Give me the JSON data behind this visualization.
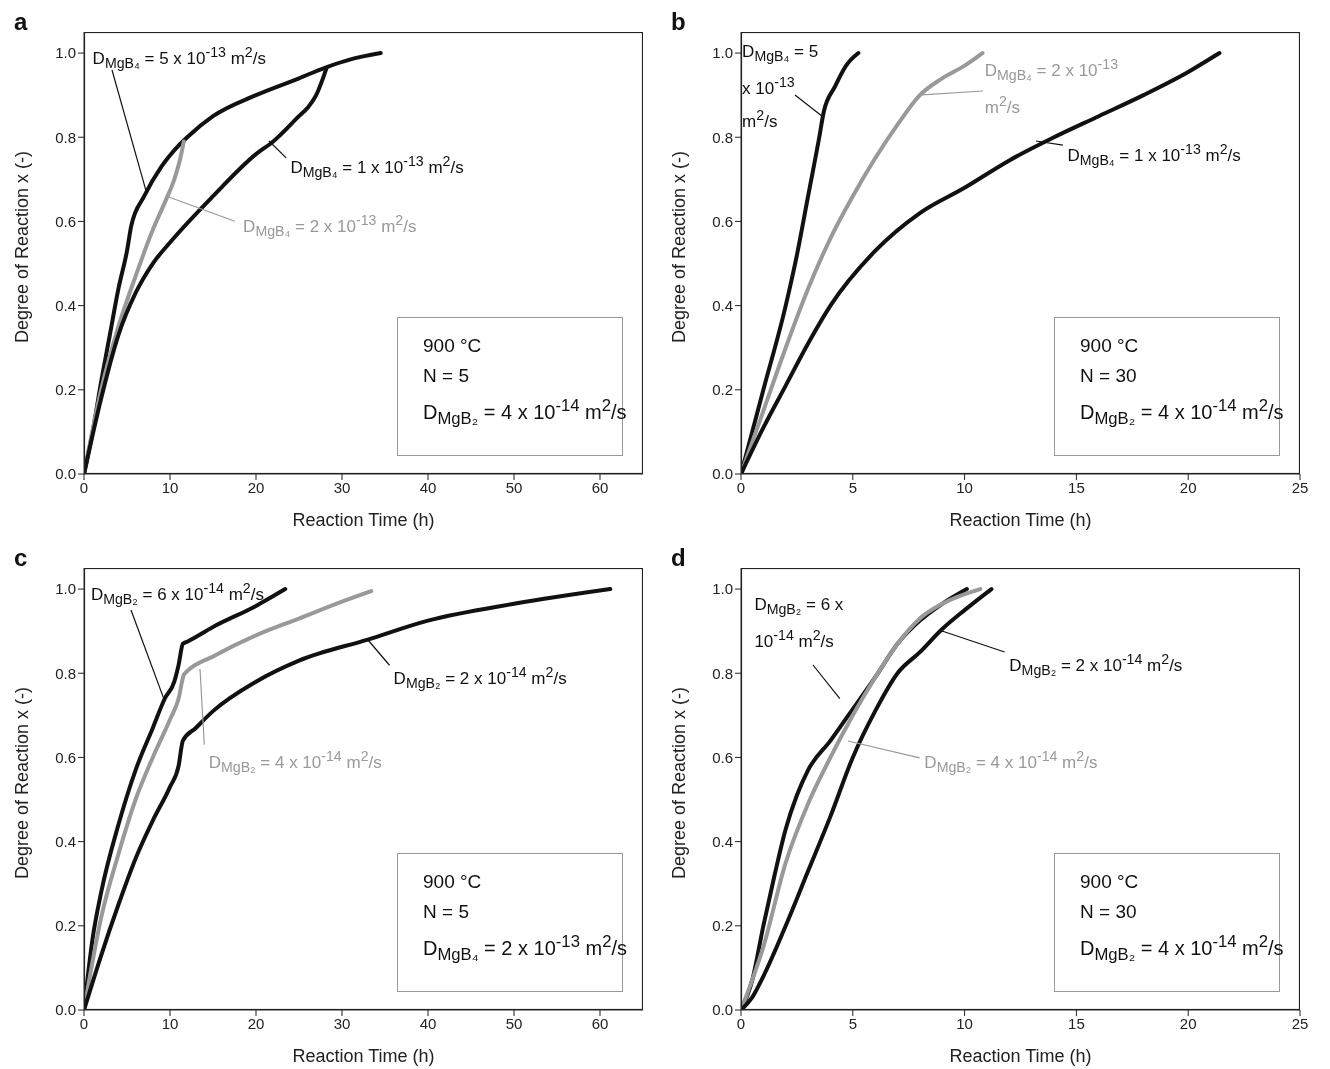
{
  "chart_data": [
    {
      "type": "line",
      "title": "a",
      "xlabel": "Reaction Time (h)",
      "ylabel": "Degree of Reaction x (-)",
      "xlim": [
        0,
        65
      ],
      "xticks": [
        0,
        10,
        20,
        30,
        40,
        50,
        60
      ],
      "ylim": [
        0,
        1.05
      ],
      "yticks": [
        {
          "value": 0,
          "label": "0.0"
        },
        {
          "value": 0.2,
          "label": "0.2"
        },
        {
          "value": 0.4,
          "label": "0.4"
        },
        {
          "value": 0.6,
          "label": "0.6"
        },
        {
          "value": 0.8,
          "label": "0.8"
        },
        {
          "value": 1,
          "label": "1.0"
        }
      ],
      "series": [
        {
          "name": "D$_{MgB₄}$ = 5 x 10$^{-13}$ m$^{2}$/s",
          "color": "#111111",
          "x": [
            0,
            1,
            2,
            3,
            4,
            5,
            5.5,
            7,
            9,
            11,
            12,
            15,
            20,
            25,
            28,
            31,
            34.5
          ],
          "values": [
            0,
            0.1,
            0.22,
            0.33,
            0.44,
            0.53,
            0.59,
            0.66,
            0.73,
            0.78,
            0.8,
            0.85,
            0.9,
            0.94,
            0.965,
            0.985,
            1.0
          ]
        },
        {
          "name": "D$_{MgB₄}$ = 2 x 10$^{-13}$ m$^{2}$/s",
          "color": "#999999",
          "x": [
            0,
            2,
            4,
            6,
            8,
            9.5,
            10.5,
            11.2,
            11.6
          ],
          "values": [
            0,
            0.2,
            0.35,
            0.47,
            0.58,
            0.65,
            0.7,
            0.75,
            0.79
          ]
        },
        {
          "name": "D$_{MgB₄}$ = 1 x 10$^{-13}$ m$^{2}$/s",
          "color": "#111111",
          "x": [
            0,
            2,
            4,
            6,
            8,
            10,
            15,
            20,
            22,
            25,
            26,
            27,
            28.2
          ],
          "values": [
            0,
            0.18,
            0.33,
            0.43,
            0.5,
            0.55,
            0.66,
            0.76,
            0.79,
            0.85,
            0.87,
            0.9,
            0.964
          ]
        }
      ],
      "annotations": [
        "900 °C",
        "N = 5",
        "D$_{MgB₂}$ = 4 x 10$^{-14}$ m$^{2}$/s"
      ]
    },
    {
      "type": "line",
      "title": "b",
      "xlabel": "Reaction Time (h)",
      "ylabel": "Degree of Reaction x (-)",
      "xlim": [
        0,
        25
      ],
      "xticks": [
        0,
        5,
        10,
        15,
        20,
        25
      ],
      "ylim": [
        0,
        1.05
      ],
      "yticks": [
        {
          "value": 0,
          "label": "0.0"
        },
        {
          "value": 0.2,
          "label": "0.2"
        },
        {
          "value": 0.4,
          "label": "0.4"
        },
        {
          "value": 0.6,
          "label": "0.6"
        },
        {
          "value": 0.8,
          "label": "0.8"
        },
        {
          "value": 1,
          "label": "1.0"
        }
      ],
      "series": [
        {
          "name": "D$_{MgB₄}$ = 5 x 10$^{-13}$ m$^{2}$/s",
          "color": "#111111",
          "x": [
            0,
            1,
            2,
            2.5,
            3,
            3.5,
            3.7,
            4.2,
            4.7,
            5.25
          ],
          "values": [
            0,
            0.2,
            0.4,
            0.52,
            0.66,
            0.8,
            0.86,
            0.92,
            0.97,
            1.0
          ]
        },
        {
          "name": "D$_{MgB₄}$ = 2 x 10$^{-13}$ m$^{2}$/s",
          "color": "#999999",
          "x": [
            0,
            1,
            2,
            3,
            4,
            5,
            6,
            7,
            8,
            9,
            10,
            10.8
          ],
          "values": [
            0,
            0.15,
            0.3,
            0.44,
            0.56,
            0.66,
            0.75,
            0.83,
            0.9,
            0.94,
            0.97,
            1.0
          ]
        },
        {
          "name": "D$_{MgB₄}$ = 1 x 10$^{-13}$ m$^{2}$/s",
          "color": "#111111",
          "x": [
            0,
            1,
            2,
            3,
            4,
            6,
            8,
            10,
            12,
            14,
            16,
            18,
            20,
            21.4
          ],
          "values": [
            0,
            0.11,
            0.21,
            0.31,
            0.4,
            0.53,
            0.62,
            0.68,
            0.745,
            0.8,
            0.85,
            0.9,
            0.955,
            1.0
          ]
        }
      ],
      "annotations": [
        "900 °C",
        "N = 30",
        "D$_{MgB₂}$ = 4 x 10$^{-14}$ m$^{2}$/s"
      ]
    },
    {
      "type": "line",
      "title": "c",
      "xlabel": "Reaction Time (h)",
      "ylabel": "Degree of Reaction x (-)",
      "xlim": [
        0,
        65
      ],
      "xticks": [
        0,
        10,
        20,
        30,
        40,
        50,
        60
      ],
      "ylim": [
        0,
        1.05
      ],
      "yticks": [
        {
          "value": 0,
          "label": "0.0"
        },
        {
          "value": 0.2,
          "label": "0.2"
        },
        {
          "value": 0.4,
          "label": "0.4"
        },
        {
          "value": 0.6,
          "label": "0.6"
        },
        {
          "value": 0.8,
          "label": "0.8"
        },
        {
          "value": 1,
          "label": "1.0"
        }
      ],
      "series": [
        {
          "name": "D$_{MgB₂}$ = 6 x 10$^{-14}$ m$^{2}$/s",
          "color": "#111111",
          "x": [
            0,
            1,
            2,
            4,
            6,
            8,
            9.4,
            10.5,
            11,
            11.5,
            12,
            15,
            20,
            23.4
          ],
          "values": [
            0,
            0.17,
            0.28,
            0.44,
            0.57,
            0.67,
            0.74,
            0.78,
            0.82,
            0.87,
            0.875,
            0.91,
            0.96,
            1.0
          ]
        },
        {
          "name": "D$_{MgB₂}$ = 4 x 10$^{-14}$ m$^{2}$/s",
          "color": "#999999",
          "x": [
            0,
            2,
            4,
            6,
            8,
            10,
            11,
            11.6,
            12,
            15,
            20,
            25,
            30,
            33.4
          ],
          "values": [
            0,
            0.22,
            0.37,
            0.5,
            0.6,
            0.69,
            0.74,
            0.796,
            0.805,
            0.84,
            0.89,
            0.93,
            0.97,
            0.995
          ]
        },
        {
          "name": "D$_{MgB₂}$ = 2 x 10$^{-14}$ m$^{2}$/s",
          "color": "#111111",
          "x": [
            0,
            2,
            4,
            6,
            8,
            10,
            11,
            11.5,
            13,
            15,
            20,
            25,
            33,
            40,
            50,
            61.2
          ],
          "values": [
            0,
            0.13,
            0.25,
            0.36,
            0.45,
            0.53,
            0.58,
            0.64,
            0.67,
            0.71,
            0.78,
            0.83,
            0.88,
            0.925,
            0.965,
            1.0
          ]
        }
      ],
      "annotations": [
        "900 °C",
        "N = 5",
        "D$_{MgB₄}$ = 2 x 10$^{-13}$ m$^{2}$/s"
      ]
    },
    {
      "type": "line",
      "title": "d",
      "xlabel": "Reaction Time (h)",
      "ylabel": "Degree of Reaction x (-)",
      "xlim": [
        0,
        25
      ],
      "xticks": [
        0,
        5,
        10,
        15,
        20,
        25
      ],
      "ylim": [
        0,
        1.05
      ],
      "yticks": [
        {
          "value": 0,
          "label": "0.0"
        },
        {
          "value": 0.2,
          "label": "0.2"
        },
        {
          "value": 0.4,
          "label": "0.4"
        },
        {
          "value": 0.6,
          "label": "0.6"
        },
        {
          "value": 0.8,
          "label": "0.8"
        },
        {
          "value": 1,
          "label": "1.0"
        }
      ],
      "series": [
        {
          "name": "D$_{MgB₂}$ = 6 x 10$^{-14}$ m$^{2}$/s",
          "color": "#111111",
          "x": [
            0,
            0.5,
            1,
            1.5,
            2,
            2.5,
            3,
            4,
            4.8,
            6,
            7,
            8,
            9,
            10.1
          ],
          "values": [
            0,
            0.07,
            0.2,
            0.32,
            0.43,
            0.51,
            0.57,
            0.64,
            0.7,
            0.79,
            0.87,
            0.925,
            0.965,
            1.0
          ]
        },
        {
          "name": "D$_{MgB₂}$ = 4 x 10$^{-14}$ m$^{2}$/s",
          "color": "#999999",
          "x": [
            0,
            1,
            2,
            3,
            4,
            5,
            6,
            7,
            8,
            9,
            10.7
          ],
          "values": [
            0,
            0.15,
            0.35,
            0.49,
            0.6,
            0.7,
            0.79,
            0.87,
            0.93,
            0.965,
            1.0
          ]
        },
        {
          "name": "D$_{MgB₂}$ = 2 x 10$^{-14}$ m$^{2}$/s",
          "color": "#111111",
          "x": [
            0,
            0.5,
            1,
            2,
            3,
            4,
            5,
            6,
            7,
            8,
            9,
            10,
            11.2
          ],
          "values": [
            0,
            0.03,
            0.08,
            0.2,
            0.33,
            0.46,
            0.6,
            0.71,
            0.8,
            0.85,
            0.905,
            0.95,
            1.0
          ]
        }
      ],
      "annotations": [
        "900 °C",
        "N = 30",
        "D$_{MgB₂}$ = 4 x 10$^{-14}$ m$^{2}$/s"
      ]
    }
  ]
}
